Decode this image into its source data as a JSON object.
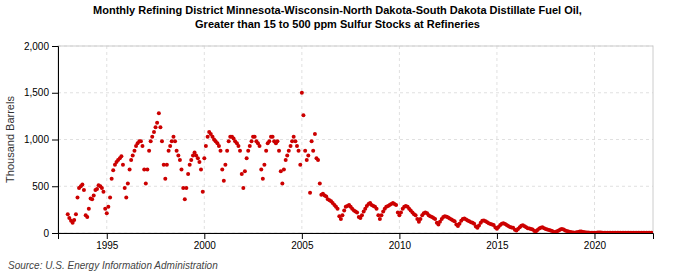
{
  "chart_data": {
    "type": "scatter",
    "title": [
      "Monthly Refining District Minnesota-Wisconsin-North Dakota-South Dakota Distillate Fuel Oil,",
      "Greater than 15 to 500 ppm Sulfur Stocks at Refineries"
    ],
    "y_label": "Thousand Barrels",
    "source": "Source: U.S. Energy Information Administration",
    "color": "#cc0000",
    "grid": true,
    "xlim": [
      1992.5,
      2023.0
    ],
    "xticks": [
      1995,
      2000,
      2005,
      2010,
      2015,
      2020
    ],
    "ylim": [
      0,
      2000
    ],
    "yticks": [
      0,
      500,
      {
        "value": 1000,
        "label": "1,000"
      },
      {
        "value": 1500,
        "label": "1,500"
      },
      {
        "value": 2000,
        "label": "2,000"
      }
    ],
    "x": [
      1993.0,
      1993.08,
      1993.17,
      1993.25,
      1993.33,
      1993.42,
      1993.5,
      1993.58,
      1993.67,
      1993.75,
      1993.83,
      1993.92,
      1994.0,
      1994.08,
      1994.17,
      1994.25,
      1994.33,
      1994.42,
      1994.5,
      1994.58,
      1994.67,
      1994.75,
      1994.83,
      1994.92,
      1995.0,
      1995.08,
      1995.17,
      1995.25,
      1995.33,
      1995.42,
      1995.5,
      1995.58,
      1995.67,
      1995.75,
      1995.83,
      1995.92,
      1996.0,
      1996.08,
      1996.17,
      1996.25,
      1996.33,
      1996.42,
      1996.5,
      1996.58,
      1996.67,
      1996.75,
      1996.83,
      1996.92,
      1997.0,
      1997.08,
      1997.17,
      1997.25,
      1997.33,
      1997.42,
      1997.5,
      1997.58,
      1997.67,
      1997.75,
      1997.83,
      1997.92,
      1998.0,
      1998.08,
      1998.17,
      1998.25,
      1998.33,
      1998.42,
      1998.5,
      1998.58,
      1998.67,
      1998.75,
      1998.83,
      1998.92,
      1999.0,
      1999.08,
      1999.17,
      1999.25,
      1999.33,
      1999.42,
      1999.5,
      1999.58,
      1999.67,
      1999.75,
      1999.83,
      1999.92,
      2000.0,
      2000.08,
      2000.17,
      2000.25,
      2000.33,
      2000.42,
      2000.5,
      2000.58,
      2000.67,
      2000.75,
      2000.83,
      2000.92,
      2001.0,
      2001.08,
      2001.17,
      2001.25,
      2001.33,
      2001.42,
      2001.5,
      2001.58,
      2001.67,
      2001.75,
      2001.83,
      2001.92,
      2002.0,
      2002.08,
      2002.17,
      2002.25,
      2002.33,
      2002.42,
      2002.5,
      2002.58,
      2002.67,
      2002.75,
      2002.83,
      2002.92,
      2003.0,
      2003.08,
      2003.17,
      2003.25,
      2003.33,
      2003.42,
      2003.5,
      2003.58,
      2003.67,
      2003.75,
      2003.83,
      2003.92,
      2004.0,
      2004.08,
      2004.17,
      2004.25,
      2004.33,
      2004.42,
      2004.5,
      2004.58,
      2004.67,
      2004.75,
      2004.83,
      2004.92,
      2005.0,
      2005.08,
      2005.17,
      2005.25,
      2005.33,
      2005.42,
      2005.5,
      2005.58,
      2005.67,
      2005.75,
      2005.83,
      2005.92,
      2006.0,
      2006.08,
      2006.17,
      2006.25,
      2006.33,
      2006.42,
      2006.5,
      2006.58,
      2006.67,
      2006.75,
      2006.83,
      2006.92,
      2007.0,
      2007.08,
      2007.17,
      2007.25,
      2007.33,
      2007.42,
      2007.5,
      2007.58,
      2007.67,
      2007.75,
      2007.83,
      2007.92,
      2008.0,
      2008.08,
      2008.17,
      2008.25,
      2008.33,
      2008.42,
      2008.5,
      2008.58,
      2008.67,
      2008.75,
      2008.83,
      2008.92,
      2009.0,
      2009.08,
      2009.17,
      2009.25,
      2009.33,
      2009.42,
      2009.5,
      2009.58,
      2009.67,
      2009.75,
      2009.83,
      2009.92,
      2010.0,
      2010.08,
      2010.17,
      2010.25,
      2010.33,
      2010.42,
      2010.5,
      2010.58,
      2010.67,
      2010.75,
      2010.83,
      2010.92,
      2011.0,
      2011.08,
      2011.17,
      2011.25,
      2011.33,
      2011.42,
      2011.5,
      2011.58,
      2011.67,
      2011.75,
      2011.83,
      2011.92,
      2012.0,
      2012.08,
      2012.17,
      2012.25,
      2012.33,
      2012.42,
      2012.5,
      2012.58,
      2012.67,
      2012.75,
      2012.83,
      2012.92,
      2013.0,
      2013.08,
      2013.17,
      2013.25,
      2013.33,
      2013.42,
      2013.5,
      2013.58,
      2013.67,
      2013.75,
      2013.83,
      2013.92,
      2014.0,
      2014.08,
      2014.17,
      2014.25,
      2014.33,
      2014.42,
      2014.5,
      2014.58,
      2014.67,
      2014.75,
      2014.83,
      2014.92,
      2015.0,
      2015.08,
      2015.17,
      2015.25,
      2015.33,
      2015.42,
      2015.5,
      2015.58,
      2015.67,
      2015.75,
      2015.83,
      2015.92,
      2016.0,
      2016.08,
      2016.17,
      2016.25,
      2016.33,
      2016.42,
      2016.5,
      2016.58,
      2016.67,
      2016.75,
      2016.83,
      2016.92,
      2017.0,
      2017.08,
      2017.17,
      2017.25,
      2017.33,
      2017.42,
      2017.5,
      2017.58,
      2017.67,
      2017.75,
      2017.83,
      2017.92,
      2018.0,
      2018.08,
      2018.17,
      2018.25,
      2018.33,
      2018.42,
      2018.5,
      2018.58,
      2018.67,
      2018.75,
      2018.83,
      2018.92,
      2019.0,
      2019.08,
      2019.17,
      2019.25,
      2019.33,
      2019.42,
      2019.5,
      2019.58,
      2019.67,
      2019.75,
      2019.83,
      2019.92,
      2020.0,
      2020.08,
      2020.17,
      2020.25,
      2020.33,
      2020.42,
      2020.5,
      2020.58,
      2020.67,
      2020.75,
      2020.83,
      2020.92,
      2021.0,
      2021.08,
      2021.17,
      2021.25,
      2021.33,
      2021.42,
      2021.5,
      2021.58,
      2021.67,
      2021.75,
      2021.83,
      2021.92,
      2022.0,
      2022.08,
      2022.17,
      2022.25,
      2022.33,
      2022.42,
      2022.5,
      2022.58,
      2022.67,
      2022.75,
      2022.83,
      2022.92
    ],
    "values": [
      200,
      160,
      130,
      110,
      140,
      200,
      380,
      480,
      500,
      520,
      460,
      190,
      170,
      260,
      370,
      360,
      400,
      460,
      470,
      510,
      500,
      480,
      440,
      260,
      210,
      280,
      380,
      580,
      670,
      730,
      760,
      780,
      800,
      820,
      730,
      480,
      380,
      530,
      680,
      780,
      830,
      880,
      930,
      960,
      980,
      980,
      930,
      680,
      530,
      680,
      880,
      980,
      1030,
      1080,
      1130,
      1180,
      1280,
      1130,
      980,
      730,
      580,
      730,
      880,
      930,
      980,
      1030,
      980,
      880,
      830,
      780,
      680,
      480,
      360,
      480,
      630,
      730,
      780,
      830,
      860,
      830,
      800,
      760,
      680,
      440,
      800,
      930,
      1030,
      1080,
      1060,
      1030,
      1000,
      980,
      960,
      930,
      880,
      680,
      560,
      730,
      880,
      980,
      1030,
      1030,
      1010,
      980,
      960,
      930,
      880,
      630,
      480,
      660,
      800,
      880,
      930,
      980,
      1030,
      1030,
      980,
      960,
      930,
      680,
      580,
      730,
      880,
      960,
      980,
      1030,
      1030,
      980,
      960,
      980,
      880,
      660,
      530,
      680,
      780,
      830,
      880,
      930,
      980,
      1030,
      980,
      930,
      880,
      730,
      1500,
      1260,
      880,
      780,
      830,
      430,
      980,
      880,
      1060,
      800,
      780,
      530,
      410,
      420,
      400,
      390,
      360,
      350,
      340,
      320,
      300,
      280,
      260,
      180,
      150,
      190,
      240,
      280,
      290,
      300,
      280,
      260,
      240,
      230,
      220,
      170,
      160,
      190,
      230,
      260,
      290,
      310,
      320,
      300,
      290,
      280,
      260,
      190,
      150,
      190,
      230,
      260,
      280,
      290,
      300,
      310,
      320,
      310,
      300,
      220,
      190,
      220,
      260,
      280,
      290,
      280,
      260,
      240,
      220,
      200,
      190,
      150,
      120,
      150,
      190,
      210,
      220,
      210,
      190,
      180,
      170,
      160,
      150,
      110,
      90,
      120,
      150,
      170,
      180,
      175,
      165,
      155,
      145,
      135,
      125,
      90,
      75,
      100,
      130,
      150,
      155,
      145,
      135,
      125,
      115,
      110,
      100,
      70,
      55,
      80,
      110,
      130,
      135,
      125,
      115,
      105,
      95,
      90,
      85,
      60,
      45,
      65,
      85,
      100,
      105,
      95,
      85,
      75,
      65,
      60,
      55,
      35,
      28,
      42,
      62,
      77,
      82,
      72,
      62,
      52,
      47,
      42,
      37,
      22,
      18,
      32,
      47,
      57,
      62,
      52,
      42,
      37,
      32,
      27,
      22,
      12,
      10,
      18,
      27,
      37,
      42,
      37,
      27,
      22,
      17,
      12,
      8,
      5,
      4,
      7,
      12,
      15,
      17,
      12,
      8,
      6,
      5,
      4,
      3,
      2,
      2,
      3,
      5,
      6,
      5,
      4,
      3,
      3,
      3,
      3,
      3,
      2,
      2,
      3,
      4,
      4,
      4,
      4,
      4,
      4,
      4,
      4,
      4,
      3,
      3,
      3,
      3,
      3,
      3,
      3,
      3,
      3,
      3,
      3,
      3,
      3
    ]
  }
}
